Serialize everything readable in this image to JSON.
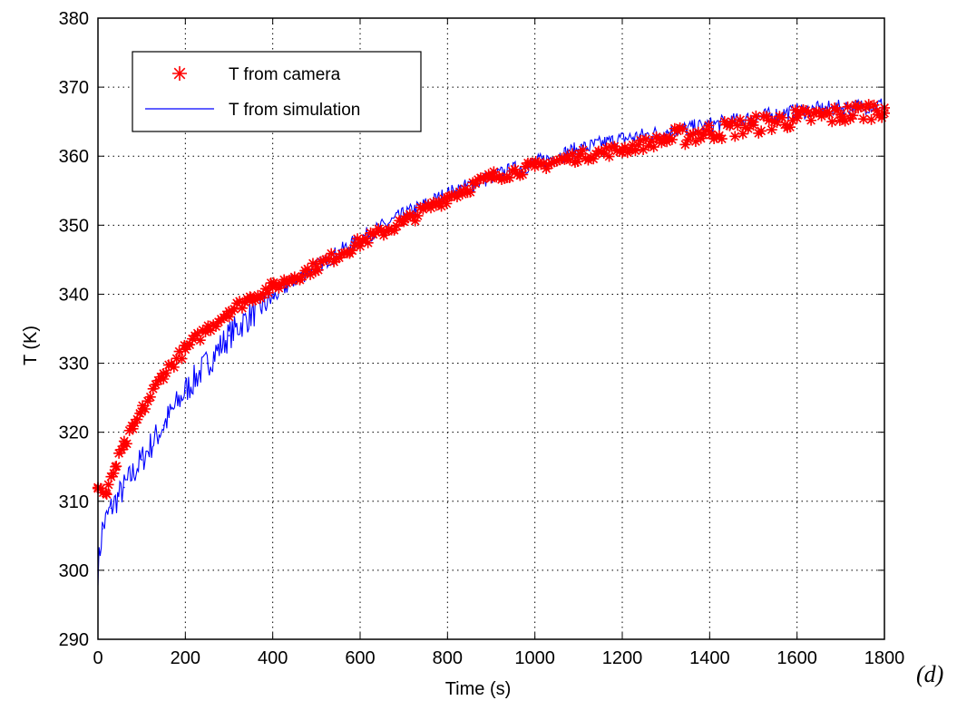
{
  "chart_data": {
    "type": "line",
    "xlabel": "Time (s)",
    "ylabel": "T (K)",
    "xlim": [
      0,
      1800
    ],
    "ylim": [
      290,
      380
    ],
    "x_ticks": [
      0,
      200,
      400,
      600,
      800,
      1000,
      1200,
      1400,
      1600,
      1800
    ],
    "x_tick_labels": [
      "0",
      "200",
      "400",
      "600",
      "800",
      "1000",
      "1200",
      "1400",
      "1600",
      "1800"
    ],
    "y_ticks": [
      290,
      300,
      310,
      320,
      330,
      340,
      350,
      360,
      370,
      380
    ],
    "y_tick_labels": [
      "290",
      "300",
      "310",
      "320",
      "330",
      "340",
      "350",
      "360",
      "370",
      "380"
    ],
    "grid": true,
    "legend_position": "top-left",
    "panel_label": "(d)",
    "series": [
      {
        "name": "T from camera",
        "style": "markers",
        "marker": "*",
        "color": "#ff0000",
        "x": [
          0,
          20,
          40,
          60,
          80,
          100,
          150,
          200,
          250,
          300,
          350,
          400,
          450,
          500,
          600,
          700,
          800,
          900,
          1000,
          1100,
          1200,
          1300,
          1400,
          1500,
          1600,
          1700,
          1800
        ],
        "y": [
          312,
          311,
          315,
          318,
          320.5,
          323,
          328.5,
          332,
          335,
          337.5,
          339.5,
          341,
          342.5,
          344,
          347.5,
          350.5,
          354,
          357,
          358.5,
          360,
          361,
          362.5,
          363.5,
          364.5,
          365.5,
          366,
          367
        ]
      },
      {
        "name": "T from simulation",
        "style": "line",
        "color": "#0000ff",
        "x": [
          0,
          10,
          30,
          60,
          100,
          150,
          200,
          250,
          300,
          350,
          400,
          450,
          500,
          600,
          700,
          800,
          900,
          1000,
          1100,
          1200,
          1300,
          1400,
          1500,
          1600,
          1700,
          1800
        ],
        "y": [
          300,
          306,
          309,
          312,
          316,
          321,
          326,
          330,
          334,
          337,
          339.5,
          342,
          344,
          348,
          351.5,
          354.5,
          357,
          359,
          361,
          362.5,
          363.5,
          364.5,
          365.5,
          366.5,
          367,
          367.5
        ]
      }
    ]
  }
}
